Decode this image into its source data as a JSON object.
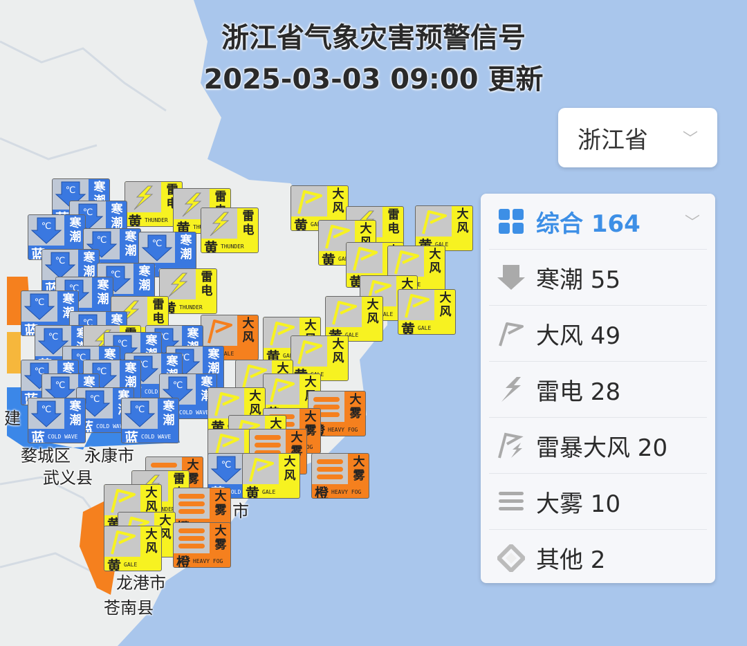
{
  "header": {
    "title": "浙江省气象灾害预警信号",
    "updated": "2025-03-03 09:00 更新"
  },
  "region_select": {
    "value": "浙江省"
  },
  "legend": {
    "items": [
      {
        "label": "综合 164",
        "icon": "grid-icon"
      },
      {
        "label": "寒潮 55",
        "icon": "cold-wave-arrow-icon"
      },
      {
        "label": "大风 49",
        "icon": "gale-flag-icon"
      },
      {
        "label": "雷电 28",
        "icon": "lightning-icon"
      },
      {
        "label": "雷暴大风 20",
        "icon": "thunder-gale-icon"
      },
      {
        "label": "大雾 10",
        "icon": "fog-lines-icon"
      },
      {
        "label": "其他 2",
        "icon": "other-diamond-icon"
      }
    ]
  },
  "places": [
    "婺城区",
    "永康市",
    "武义县",
    "龙港市",
    "苍南县",
    "建",
    "蓝",
    "蓝",
    "蓝",
    "市"
  ],
  "warning_types": {
    "cold_wave": {
      "name": "寒潮",
      "en": "COLD WAVE",
      "color": "#3a78e0"
    },
    "gale": {
      "name": "大风",
      "en": "GALE",
      "color": "#f7f221"
    },
    "thunder": {
      "name": "雷电",
      "en": "THUNDER",
      "color": "#f7f221"
    },
    "fog": {
      "name": "大雾",
      "en": "HEAVY FOG",
      "color": "#f5801e"
    },
    "gale_orange": {
      "name": "大风",
      "en": "GALE",
      "color": "#f5801e"
    }
  },
  "levels": {
    "blue": "蓝",
    "yellow": "黄",
    "orange": "橙"
  },
  "colors": {
    "land": "#eceeee",
    "sea": "#a9c6ec",
    "accent": "#3d8fe6",
    "blue_area": "#3b87e8",
    "orange_area": "#f5801e"
  }
}
